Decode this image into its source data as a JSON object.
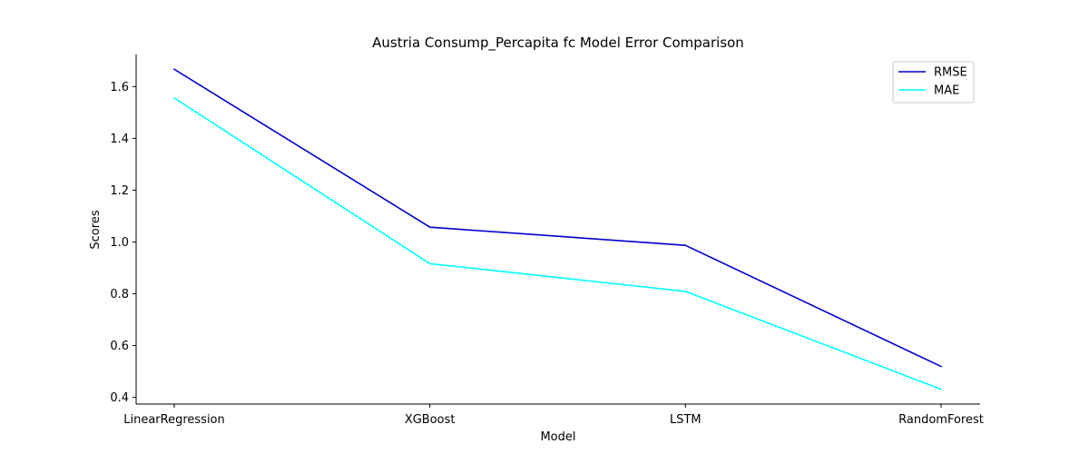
{
  "chart_data": {
    "type": "line",
    "title": "Austria Consump_Percapita fc Model Error Comparison",
    "xlabel": "Model",
    "ylabel": "Scores",
    "categories": [
      "LinearRegression",
      "XGBoost",
      "LSTM",
      "RandomForest"
    ],
    "series": [
      {
        "name": "RMSE",
        "color": "#0000cd",
        "values": [
          1.667,
          1.057,
          0.987,
          0.519
        ]
      },
      {
        "name": "MAE",
        "color": "#00ffff",
        "values": [
          1.556,
          0.916,
          0.809,
          0.431
        ]
      }
    ],
    "ylim": [
      0.374,
      1.724
    ],
    "yticks": [
      "0.4",
      "0.6",
      "0.8",
      "1.0",
      "1.2",
      "1.4",
      "1.6"
    ],
    "grid": false,
    "legend": "top-right"
  }
}
